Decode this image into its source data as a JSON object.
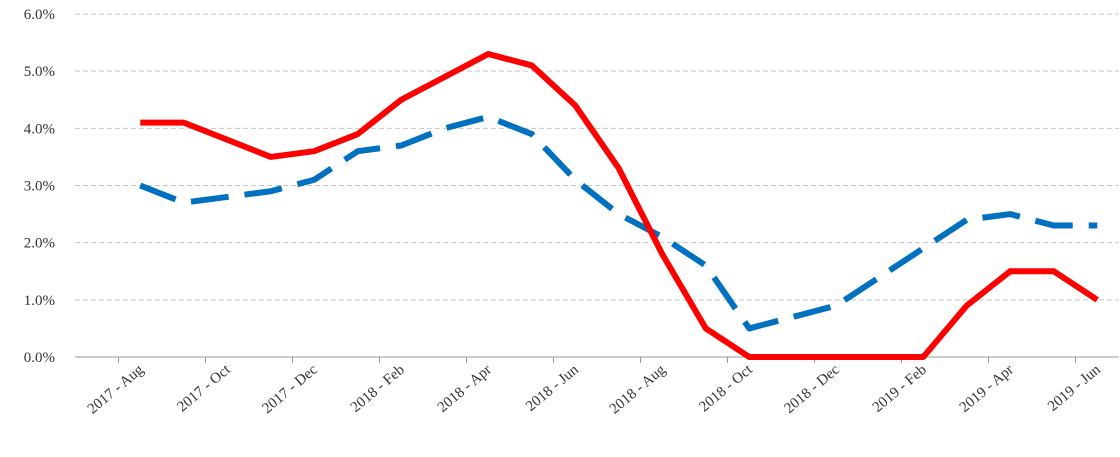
{
  "chart_data": {
    "type": "line",
    "categories": [
      null,
      "2017 - Aug",
      null,
      "2017 - Oct",
      null,
      "2017 - Dec",
      null,
      "2018 - Feb",
      null,
      "2018 - Apr",
      null,
      "2018 - Jun",
      null,
      "2018 - Aug",
      null,
      "2018 - Oct",
      null,
      "2018 - Dec",
      null,
      "2019 - Feb",
      null,
      "2019 - Apr",
      null,
      "2019 - Jun"
    ],
    "series": [
      {
        "color": "#0070c0",
        "dash": "dashed",
        "values": [
          null,
          3.0,
          2.7,
          2.8,
          2.9,
          3.1,
          3.6,
          3.7,
          4.0,
          4.2,
          3.9,
          3.1,
          2.5,
          2.1,
          1.6,
          0.5,
          0.7,
          0.9,
          1.4,
          1.9,
          2.4,
          2.5,
          2.3,
          2.3
        ]
      },
      {
        "color": "#ff0000",
        "dash": "solid",
        "values": [
          null,
          4.1,
          4.1,
          3.8,
          3.5,
          3.6,
          3.9,
          4.5,
          4.9,
          5.3,
          5.1,
          4.4,
          3.3,
          1.8,
          0.5,
          0.0,
          0.0,
          0.0,
          0.0,
          0.0,
          0.9,
          1.5,
          1.5,
          1.0
        ]
      }
    ],
    "ylim": [
      0,
      6
    ],
    "yticks": [
      {
        "value": 0,
        "label": "0.0%"
      },
      {
        "value": 1,
        "label": "1.0%"
      },
      {
        "value": 2,
        "label": "2.0%"
      },
      {
        "value": 3,
        "label": "3.0%"
      },
      {
        "value": 4,
        "label": "4.0%"
      },
      {
        "value": 5,
        "label": "5.0%"
      },
      {
        "value": 6,
        "label": "6.0%"
      }
    ],
    "grid": true
  }
}
